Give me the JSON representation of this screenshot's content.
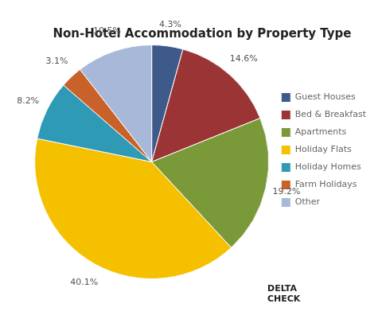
{
  "chart_data": {
    "type": "pie",
    "title": "Non-Hotel Accommodation by Property Type",
    "categories": [
      "Guest Houses",
      "Bed & Breakfast",
      "Apartments",
      "Holiday Flats",
      "Holiday Homes",
      "Farm Holidays",
      "Other"
    ],
    "values": [
      4.3,
      14.6,
      19.2,
      40.1,
      8.2,
      3.1,
      10.5
    ],
    "value_labels": [
      "4.3%",
      "14.6%",
      "19.2%",
      "40.1%",
      "8.2%",
      "3.1%",
      "10.5%"
    ],
    "colors": [
      "#3d5a8a",
      "#9b3535",
      "#7a9a3a",
      "#f5c000",
      "#2e9ab5",
      "#c8622a",
      "#a8b8d8"
    ],
    "data_labels": true,
    "legend": "right",
    "annotation": "DELTA\nCHECK"
  }
}
